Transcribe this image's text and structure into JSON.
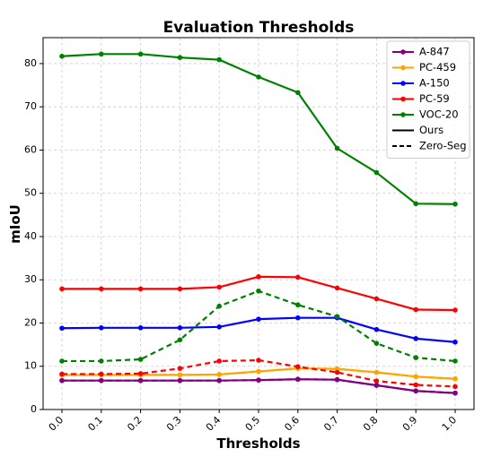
{
  "chart_data": {
    "type": "line",
    "title": "Evaluation Thresholds",
    "xlabel": "Thresholds",
    "ylabel": "mIoU",
    "x": [
      "0.0",
      "0.1",
      "0.2",
      "0.3",
      "0.4",
      "0.5",
      "0.6",
      "0.7",
      "0.8",
      "0.9",
      "1.0"
    ],
    "ylim": [
      0,
      86
    ],
    "yticks": [
      "0",
      "10",
      "20",
      "30",
      "40",
      "50",
      "60",
      "70",
      "80"
    ],
    "grid": true,
    "legend_position": "top-right",
    "series": [
      {
        "name": "A-847",
        "color": "#800080",
        "style": "solid",
        "values": [
          6.7,
          6.7,
          6.7,
          6.7,
          6.7,
          6.8,
          7.0,
          6.9,
          5.6,
          4.3,
          3.8
        ]
      },
      {
        "name": "PC-459",
        "color": "#ffa500",
        "style": "solid",
        "values": [
          8.0,
          8.0,
          8.0,
          8.0,
          8.1,
          8.8,
          9.5,
          9.4,
          8.6,
          7.6,
          7.1
        ]
      },
      {
        "name": "A-150",
        "color": "#0000ff",
        "style": "solid",
        "values": [
          18.8,
          18.9,
          18.9,
          18.9,
          19.1,
          20.9,
          21.2,
          21.2,
          18.5,
          16.4,
          15.6
        ]
      },
      {
        "name": "PC-59",
        "color": "#ff0000",
        "style": "solid",
        "values": [
          27.9,
          27.9,
          27.9,
          27.9,
          28.3,
          30.7,
          30.6,
          28.1,
          25.6,
          23.1,
          23.0
        ]
      },
      {
        "name": "VOC-20",
        "color": "#008000",
        "style": "solid",
        "values": [
          81.7,
          82.2,
          82.2,
          81.4,
          80.9,
          76.9,
          73.3,
          60.4,
          54.8,
          47.6,
          47.5
        ]
      },
      {
        "color": "#800080",
        "style": "dashed",
        "values": [
          6.7,
          6.7,
          6.7,
          6.7,
          6.7,
          6.8,
          7.0,
          6.9,
          5.6,
          4.3,
          3.8
        ]
      },
      {
        "color": "#ffa500",
        "style": "dashed",
        "values": [
          8.0,
          8.0,
          8.0,
          8.0,
          8.1,
          8.8,
          9.5,
          9.4,
          8.6,
          7.6,
          7.1
        ]
      },
      {
        "color": "#ff0000",
        "style": "dashed",
        "values": [
          8.2,
          8.2,
          8.3,
          9.5,
          11.2,
          11.4,
          9.9,
          8.6,
          6.6,
          5.7,
          5.3
        ]
      },
      {
        "color": "#008000",
        "style": "dashed",
        "values": [
          11.2,
          11.2,
          11.6,
          16.1,
          23.9,
          27.4,
          24.2,
          21.5,
          15.3,
          12.0,
          11.2
        ]
      }
    ],
    "legend": [
      {
        "label": "A-847",
        "color": "#800080",
        "style": "marker"
      },
      {
        "label": "PC-459",
        "color": "#ffa500",
        "style": "marker"
      },
      {
        "label": "A-150",
        "color": "#0000ff",
        "style": "marker"
      },
      {
        "label": "PC-59",
        "color": "#ff0000",
        "style": "marker"
      },
      {
        "label": "VOC-20",
        "color": "#008000",
        "style": "marker"
      },
      {
        "label": "Ours",
        "color": "#000000",
        "style": "solid"
      },
      {
        "label": "Zero-Seg",
        "color": "#000000",
        "style": "dashed"
      }
    ]
  }
}
